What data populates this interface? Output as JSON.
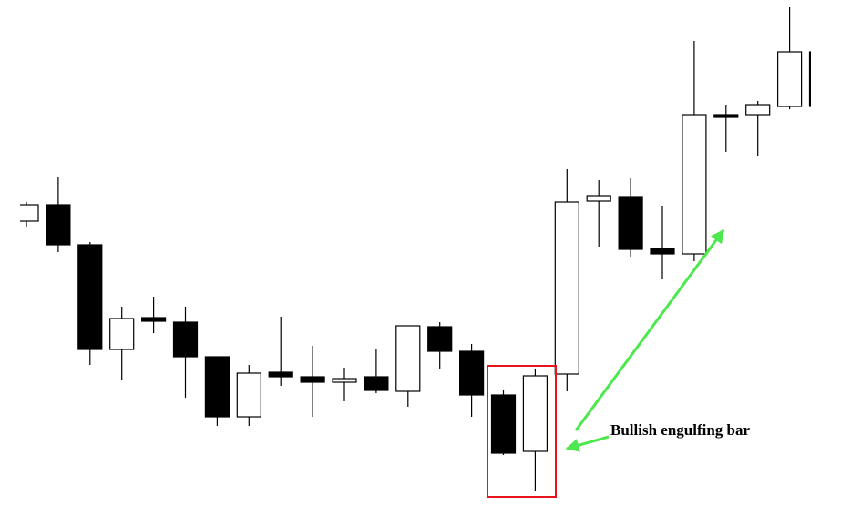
{
  "chart_data": {
    "type": "candlestick",
    "annotation": "Bullish engulfing bar",
    "ylim": [
      0,
      556
    ],
    "up_color": "#ffffff",
    "down_color": "#000000",
    "open": [
      313,
      331,
      287,
      172,
      207,
      202,
      164,
      98,
      147,
      142,
      136,
      142,
      126,
      197,
      170,
      122,
      60,
      145,
      335,
      340,
      283,
      277,
      430,
      430,
      439,
      499
    ],
    "high": [
      334,
      361,
      290,
      219,
      230,
      219,
      164,
      155,
      208,
      176,
      152,
      173,
      198,
      202,
      178,
      128,
      150,
      370,
      358,
      360,
      330,
      511,
      441,
      445,
      548,
      505
    ],
    "low": [
      307,
      279,
      155,
      138,
      190,
      119,
      88,
      88,
      132,
      98,
      115,
      124,
      109,
      150,
      98,
      56,
      16,
      126,
      285,
      274,
      249,
      269,
      389,
      385,
      436,
      430
    ],
    "close": [
      331,
      287,
      172,
      206,
      203,
      164,
      98,
      146,
      142,
      136,
      140,
      127,
      198,
      170,
      122,
      58,
      143,
      334,
      341,
      282,
      277,
      430,
      427,
      441,
      499,
      439
    ]
  }
}
